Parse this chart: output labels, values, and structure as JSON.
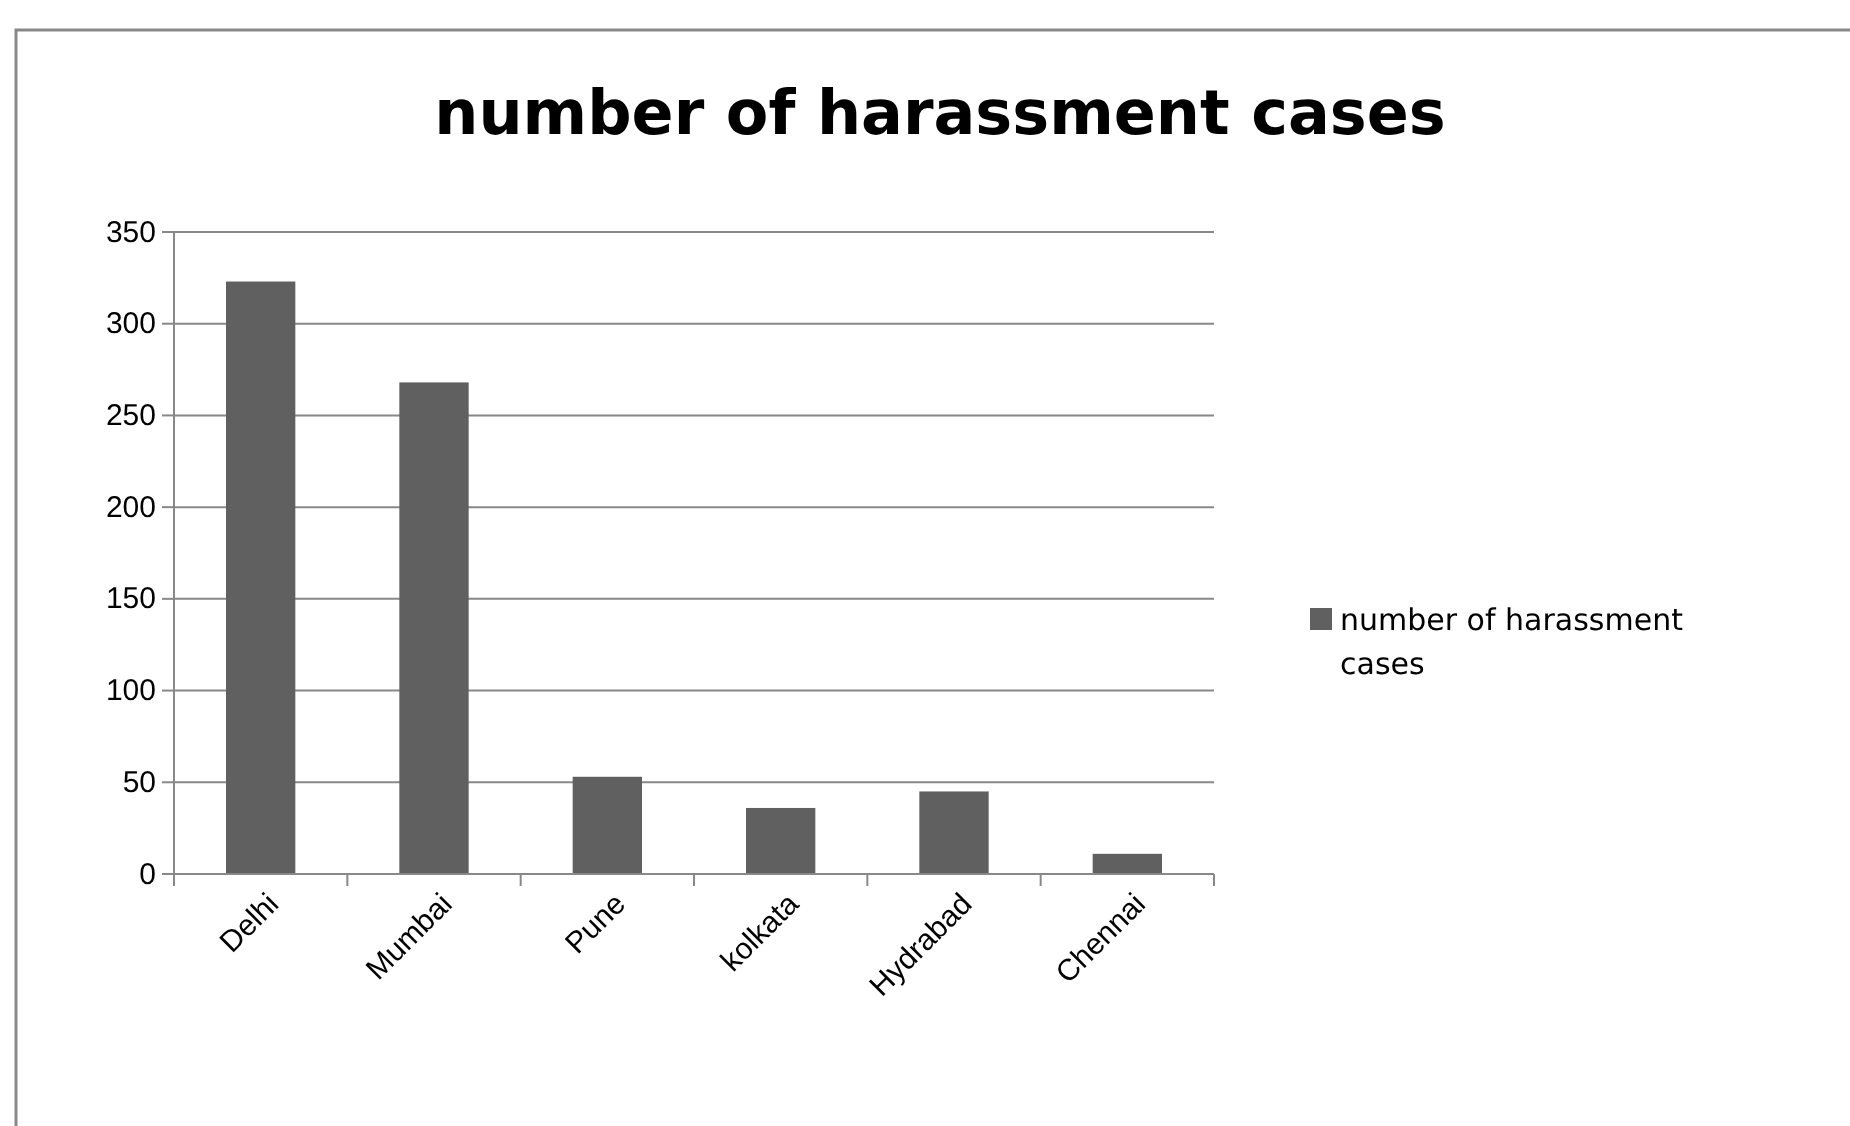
{
  "chart_data": {
    "type": "bar",
    "title": "number of harassment cases",
    "categories": [
      "Delhi",
      "Mumbai",
      "Pune",
      "kolkata",
      "Hydrabad",
      "Chennai"
    ],
    "series": [
      {
        "name": "number of harassment cases",
        "color": "#606060",
        "values": [
          323,
          268,
          53,
          36,
          45,
          11
        ]
      }
    ],
    "ylim": [
      0,
      350
    ],
    "yticks": [
      0,
      50,
      100,
      150,
      200,
      250,
      300,
      350
    ],
    "grid": "y",
    "legend": "right"
  }
}
